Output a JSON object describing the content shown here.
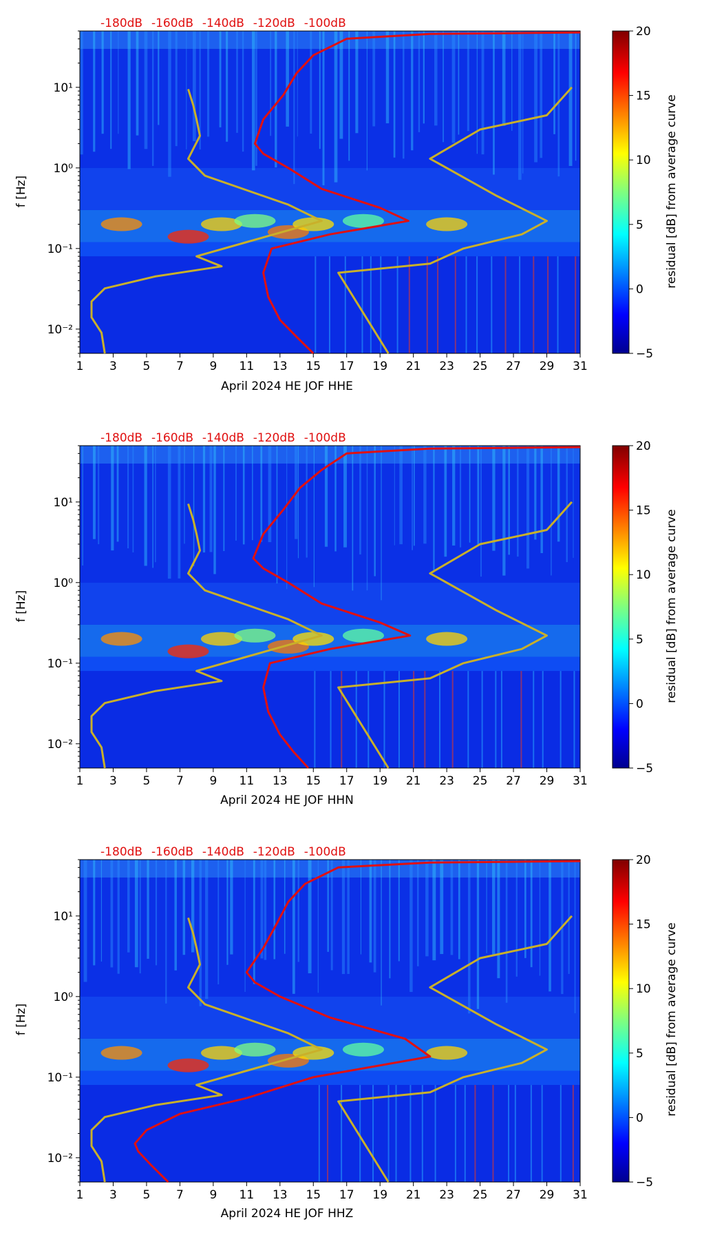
{
  "colors": {
    "red_curve": "#e01010",
    "model_curve": "#c9b02a",
    "top_label": "#e01010",
    "axis": "#000000"
  },
  "colorbar": {
    "label": "residual [dB] from average curve",
    "ticks": [
      "20",
      "15",
      "10",
      "5",
      "0",
      "−5"
    ],
    "tick_values": [
      20,
      15,
      10,
      5,
      0,
      -5
    ],
    "range": [
      -5,
      20
    ],
    "colormap": "jet"
  },
  "chart_data": [
    {
      "type": "heatmap",
      "title": "",
      "xlabel": "April 2024 HE JOF  HHE",
      "ylabel": "f [Hz]",
      "x_ticks": [
        "1",
        "3",
        "5",
        "7",
        "9",
        "11",
        "13",
        "15",
        "17",
        "19",
        "21",
        "23",
        "25",
        "27",
        "29",
        "31"
      ],
      "xlim": [
        1,
        31
      ],
      "y_scale": "log",
      "ylim": [
        0.005,
        50
      ],
      "y_ticks": [
        {
          "value": 0.01,
          "label": "10⁻²"
        },
        {
          "value": 0.1,
          "label": "10⁻¹"
        },
        {
          "value": 1,
          "label": "10⁰"
        },
        {
          "value": 10,
          "label": "10¹"
        }
      ],
      "top_axis_labels": [
        "-180dB",
        "-160dB",
        "-140dB",
        "-120dB",
        "-100dB"
      ],
      "top_axis_values_dB": [
        -180,
        -160,
        -140,
        -120,
        -100
      ],
      "series": [
        {
          "name": "red PSD curve",
          "points": [
            [
              15.0,
              0.005
            ],
            [
              14.0,
              0.008
            ],
            [
              13.0,
              0.013
            ],
            [
              12.3,
              0.025
            ],
            [
              12.0,
              0.05
            ],
            [
              12.5,
              0.1
            ],
            [
              16.0,
              0.15
            ],
            [
              20.7,
              0.22
            ],
            [
              19.0,
              0.32
            ],
            [
              15.5,
              0.55
            ],
            [
              13.5,
              1.0
            ],
            [
              12.0,
              1.5
            ],
            [
              11.5,
              2.0
            ],
            [
              12.0,
              4.0
            ],
            [
              13.2,
              8.0
            ],
            [
              14.0,
              15.0
            ],
            [
              15.0,
              25.0
            ],
            [
              17.0,
              40.0
            ],
            [
              22.0,
              46.0
            ],
            [
              27.0,
              47.0
            ],
            [
              31.0,
              48.0
            ]
          ]
        },
        {
          "name": "model curve",
          "points": [
            [
              2.5,
              0.005
            ],
            [
              2.3,
              0.009
            ],
            [
              1.7,
              0.014
            ],
            [
              1.7,
              0.022
            ],
            [
              2.5,
              0.032
            ],
            [
              5.5,
              0.045
            ],
            [
              9.5,
              0.06
            ],
            [
              8.0,
              0.08
            ],
            [
              11.0,
              0.12
            ],
            [
              15.5,
              0.22
            ],
            [
              13.5,
              0.35
            ],
            [
              8.5,
              0.8
            ],
            [
              7.5,
              1.3
            ],
            [
              8.2,
              2.5
            ],
            [
              8.0,
              4.0
            ],
            [
              7.8,
              6.0
            ],
            [
              7.5,
              9.5
            ]
          ]
        },
        {
          "name": "model curve (right)",
          "points": [
            [
              19.5,
              0.005
            ],
            [
              16.5,
              0.05
            ],
            [
              22.0,
              0.065
            ],
            [
              24.0,
              0.1
            ],
            [
              27.5,
              0.15
            ],
            [
              29.0,
              0.22
            ],
            [
              26.0,
              0.45
            ],
            [
              22.0,
              1.3
            ],
            [
              25.0,
              3.0
            ],
            [
              29.0,
              4.5
            ],
            [
              30.5,
              10.0
            ]
          ]
        }
      ]
    },
    {
      "type": "heatmap",
      "title": "",
      "xlabel": "April 2024 HE JOF  HHN",
      "ylabel": "f [Hz]",
      "x_ticks": [
        "1",
        "3",
        "5",
        "7",
        "9",
        "11",
        "13",
        "15",
        "17",
        "19",
        "21",
        "23",
        "25",
        "27",
        "29",
        "31"
      ],
      "xlim": [
        1,
        31
      ],
      "y_scale": "log",
      "ylim": [
        0.005,
        50
      ],
      "y_ticks": [
        {
          "value": 0.01,
          "label": "10⁻²"
        },
        {
          "value": 0.1,
          "label": "10⁻¹"
        },
        {
          "value": 1,
          "label": "10⁰"
        },
        {
          "value": 10,
          "label": "10¹"
        }
      ],
      "top_axis_labels": [
        "-180dB",
        "-160dB",
        "-140dB",
        "-120dB",
        "-100dB"
      ],
      "top_axis_values_dB": [
        -180,
        -160,
        -140,
        -120,
        -100
      ],
      "series": [
        {
          "name": "red PSD curve",
          "points": [
            [
              14.7,
              0.005
            ],
            [
              13.8,
              0.008
            ],
            [
              13.0,
              0.013
            ],
            [
              12.3,
              0.025
            ],
            [
              12.0,
              0.05
            ],
            [
              12.4,
              0.1
            ],
            [
              16.0,
              0.15
            ],
            [
              20.8,
              0.22
            ],
            [
              19.0,
              0.32
            ],
            [
              15.5,
              0.55
            ],
            [
              13.5,
              1.0
            ],
            [
              12.0,
              1.5
            ],
            [
              11.4,
              2.0
            ],
            [
              12.0,
              4.0
            ],
            [
              13.2,
              8.0
            ],
            [
              14.2,
              15.0
            ],
            [
              15.5,
              25.0
            ],
            [
              17.0,
              40.0
            ],
            [
              22.0,
              46.0
            ],
            [
              27.0,
              47.0
            ],
            [
              31.0,
              48.0
            ]
          ]
        },
        {
          "name": "model curve",
          "points": [
            [
              2.5,
              0.005
            ],
            [
              2.3,
              0.009
            ],
            [
              1.7,
              0.014
            ],
            [
              1.7,
              0.022
            ],
            [
              2.5,
              0.032
            ],
            [
              5.5,
              0.045
            ],
            [
              9.5,
              0.06
            ],
            [
              8.0,
              0.08
            ],
            [
              11.0,
              0.12
            ],
            [
              15.5,
              0.22
            ],
            [
              13.5,
              0.35
            ],
            [
              8.5,
              0.8
            ],
            [
              7.5,
              1.3
            ],
            [
              8.2,
              2.5
            ],
            [
              8.0,
              4.0
            ],
            [
              7.8,
              6.0
            ],
            [
              7.5,
              9.5
            ]
          ]
        },
        {
          "name": "model curve (right)",
          "points": [
            [
              19.5,
              0.005
            ],
            [
              16.5,
              0.05
            ],
            [
              22.0,
              0.065
            ],
            [
              24.0,
              0.1
            ],
            [
              27.5,
              0.15
            ],
            [
              29.0,
              0.22
            ],
            [
              26.0,
              0.45
            ],
            [
              22.0,
              1.3
            ],
            [
              25.0,
              3.0
            ],
            [
              29.0,
              4.5
            ],
            [
              30.5,
              10.0
            ]
          ]
        }
      ]
    },
    {
      "type": "heatmap",
      "title": "",
      "xlabel": "April 2024 HE JOF  HHZ",
      "ylabel": "f [Hz]",
      "x_ticks": [
        "1",
        "3",
        "5",
        "7",
        "9",
        "11",
        "13",
        "15",
        "17",
        "19",
        "21",
        "23",
        "25",
        "27",
        "29",
        "31"
      ],
      "xlim": [
        1,
        31
      ],
      "y_scale": "log",
      "ylim": [
        0.005,
        50
      ],
      "y_ticks": [
        {
          "value": 0.01,
          "label": "10⁻²"
        },
        {
          "value": 0.1,
          "label": "10⁻¹"
        },
        {
          "value": 1,
          "label": "10⁰"
        },
        {
          "value": 10,
          "label": "10¹"
        }
      ],
      "top_axis_labels": [
        "-180dB",
        "-160dB",
        "-140dB",
        "-120dB",
        "-100dB"
      ],
      "top_axis_values_dB": [
        -180,
        -160,
        -140,
        -120,
        -100
      ],
      "series": [
        {
          "name": "red PSD curve",
          "points": [
            [
              6.3,
              0.005
            ],
            [
              5.3,
              0.008
            ],
            [
              4.5,
              0.012
            ],
            [
              4.3,
              0.015
            ],
            [
              5.0,
              0.022
            ],
            [
              7.0,
              0.035
            ],
            [
              11.0,
              0.055
            ],
            [
              15.0,
              0.1
            ],
            [
              22.0,
              0.18
            ],
            [
              20.5,
              0.3
            ],
            [
              16.0,
              0.55
            ],
            [
              13.0,
              1.0
            ],
            [
              11.5,
              1.5
            ],
            [
              11.0,
              2.0
            ],
            [
              12.0,
              4.0
            ],
            [
              12.8,
              8.0
            ],
            [
              13.5,
              15.0
            ],
            [
              14.5,
              25.0
            ],
            [
              16.5,
              40.0
            ],
            [
              22.0,
              46.0
            ],
            [
              27.0,
              47.0
            ],
            [
              31.0,
              48.0
            ]
          ]
        },
        {
          "name": "model curve",
          "points": [
            [
              2.5,
              0.005
            ],
            [
              2.3,
              0.009
            ],
            [
              1.7,
              0.014
            ],
            [
              1.7,
              0.022
            ],
            [
              2.5,
              0.032
            ],
            [
              5.5,
              0.045
            ],
            [
              9.5,
              0.06
            ],
            [
              8.0,
              0.08
            ],
            [
              11.0,
              0.12
            ],
            [
              15.5,
              0.22
            ],
            [
              13.5,
              0.35
            ],
            [
              8.5,
              0.8
            ],
            [
              7.5,
              1.3
            ],
            [
              8.2,
              2.5
            ],
            [
              8.0,
              4.0
            ],
            [
              7.8,
              6.0
            ],
            [
              7.5,
              9.5
            ]
          ]
        },
        {
          "name": "model curve (right)",
          "points": [
            [
              19.5,
              0.005
            ],
            [
              16.5,
              0.05
            ],
            [
              22.0,
              0.065
            ],
            [
              24.0,
              0.1
            ],
            [
              27.5,
              0.15
            ],
            [
              29.0,
              0.22
            ],
            [
              26.0,
              0.45
            ],
            [
              22.0,
              1.3
            ],
            [
              25.0,
              3.0
            ],
            [
              29.0,
              4.5
            ],
            [
              30.5,
              10.0
            ]
          ]
        }
      ]
    }
  ]
}
